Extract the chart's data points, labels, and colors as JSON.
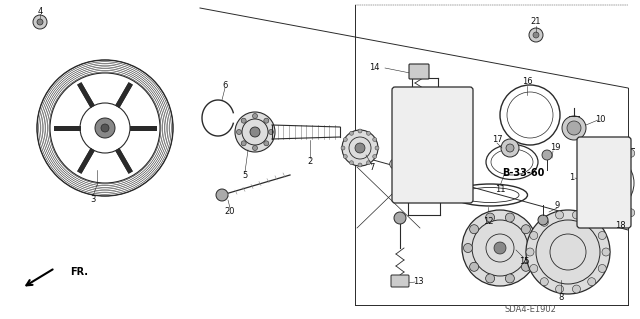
{
  "bg_color": "#ffffff",
  "dc": "#2a2a2a",
  "lc": "#111111",
  "fig_width": 6.4,
  "fig_height": 3.19,
  "footer_text": "SDA4-E1902",
  "bold_label": "B-33-60",
  "direction_label": "FR."
}
